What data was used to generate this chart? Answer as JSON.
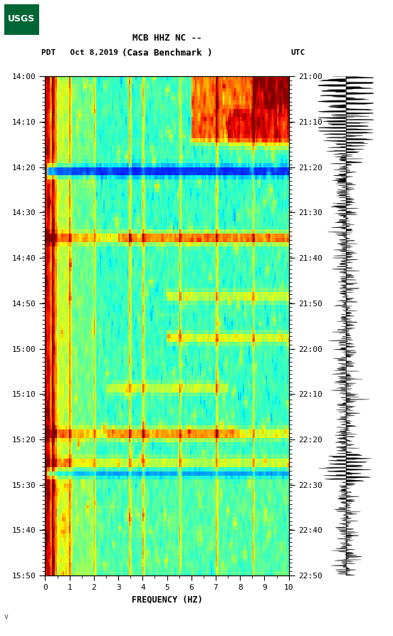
{
  "title_line1": "MCB HHZ NC --",
  "title_line2": "(Casa Benchmark )",
  "left_label": "PDT   Oct 8,2019",
  "right_label": "UTC",
  "xlabel": "FREQUENCY (HZ)",
  "x_ticks": [
    0,
    1,
    2,
    3,
    4,
    5,
    6,
    7,
    8,
    9,
    10
  ],
  "x_tick_labels": [
    "0",
    "1",
    "2",
    "3",
    "4",
    "5",
    "6",
    "7",
    "8",
    "9",
    "10"
  ],
  "xlim": [
    0,
    10
  ],
  "left_time_labels": [
    "14:00",
    "14:10",
    "14:20",
    "14:30",
    "14:40",
    "14:50",
    "15:00",
    "15:10",
    "15:20",
    "15:30",
    "15:40",
    "15:50"
  ],
  "right_time_labels": [
    "21:00",
    "21:10",
    "21:20",
    "21:30",
    "21:40",
    "21:50",
    "22:00",
    "22:10",
    "22:20",
    "22:30",
    "22:40",
    "22:50"
  ],
  "n_time_steps": 120,
  "n_freq_bins": 200,
  "spectrogram_seed": 42,
  "colormap": "jet",
  "fig_width": 5.52,
  "fig_height": 8.93,
  "usgs_logo_color": "#006633",
  "background_color": "#ffffff",
  "text_color": "#000000",
  "mono_font": "monospace",
  "watermark": "v",
  "vmin": -120,
  "vmax": -60
}
